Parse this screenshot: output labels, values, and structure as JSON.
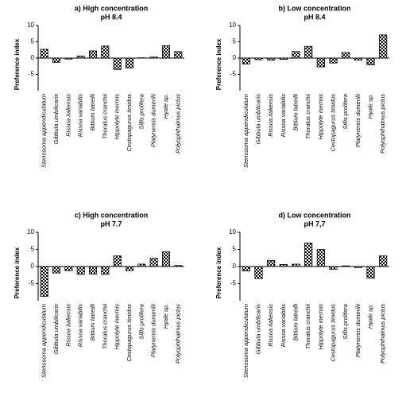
{
  "chart_data": [
    {
      "type": "bar",
      "title": "a) High concentration",
      "subtitle": "pH 8.4",
      "y_label": "Preference index",
      "categories": [
        "Stenosoma appendiculatum",
        "Gibbula umbilicaris",
        "Rissoa italiensis",
        "Rissoa variabilis",
        "Bittium latreilli",
        "Thoralus cranchii",
        "Hippolyte inermis",
        "Cestopagurus timidus",
        "Sillis prolifera",
        "Platynereis dumerilii",
        "Hyale sp.",
        "Polyophthalmus pictus"
      ],
      "values": [
        2.7,
        -1.3,
        -0.3,
        0.6,
        2.2,
        3.7,
        -3.5,
        -3.0,
        0.1,
        0.3,
        3.8,
        2.0
      ],
      "color": "#000000",
      "ylim": [
        -10,
        10
      ],
      "yticks": [
        -5,
        0,
        5,
        10
      ]
    },
    {
      "type": "bar",
      "title": "b) Low concentration",
      "subtitle": "pH 8.4",
      "y_label": "Preference index",
      "categories": [
        "Stenosoma appendiculatum",
        "Gibbula umbilicaris",
        "Rissoa italiensis",
        "Rissoa variabilis",
        "Bittium latreilli",
        "Thoralus cranchii",
        "Hippolyte inermis",
        "Cestopagurus timidus",
        "Sillis prolifera",
        "Platynereis dumerilii",
        "Hyale sp.",
        "Polyophthalmus pictus"
      ],
      "values": [
        -1.8,
        -0.5,
        -0.6,
        -0.4,
        2.0,
        3.6,
        -2.7,
        -1.5,
        1.7,
        -0.6,
        -2.1,
        7.1
      ],
      "color": "#000000",
      "ylim": [
        -10,
        10
      ],
      "yticks": [
        -5,
        0,
        5,
        10
      ]
    },
    {
      "type": "bar",
      "title": "c) High concentration",
      "subtitle": "pH 7.7",
      "y_label": "Preference index",
      "categories": [
        "Stenosoma appendiculatum",
        "Gibbula umbilicaris",
        "Rissoa italiensis",
        "Rissoa variabilis",
        "Bittium latreilli",
        "Thoralus cranchii",
        "Hippolyte inermis",
        "Cestopagurus timidus",
        "Sillis prolifera",
        "Platynereis dumerilii",
        "Hyale sp.",
        "Polyophthalmus pictus"
      ],
      "values": [
        -8.7,
        -1.9,
        -1.2,
        -2.3,
        -2.2,
        -2.3,
        3.1,
        -1.2,
        0.7,
        2.4,
        4.3,
        0.3
      ],
      "color": "#000000",
      "ylim": [
        -10,
        10
      ],
      "yticks": [
        -5,
        0,
        5,
        10
      ]
    },
    {
      "type": "bar",
      "title": "d) Low concentration",
      "subtitle": "pH 7,7",
      "y_label": "Preference index",
      "categories": [
        "Stenosoma appendiculatum",
        "Gibbula umbilicaris",
        "Rissoa italiensis",
        "Rissoa variabilis",
        "Bittium latreilli",
        "Thoralus cranchii",
        "Hippolyte inermis",
        "Cestopagurus timidus",
        "Sillis prolifera",
        "Platynereis dumerilii",
        "Hyale sp.",
        "Polyophthalmus pictus"
      ],
      "values": [
        -1.3,
        -3.5,
        1.8,
        0.6,
        0.7,
        6.9,
        5.0,
        -0.8,
        0.2,
        -0.3,
        -3.4,
        3.1
      ],
      "color": "#000000",
      "ylim": [
        -10,
        10
      ],
      "yticks": [
        -5,
        0,
        5,
        10
      ]
    }
  ]
}
